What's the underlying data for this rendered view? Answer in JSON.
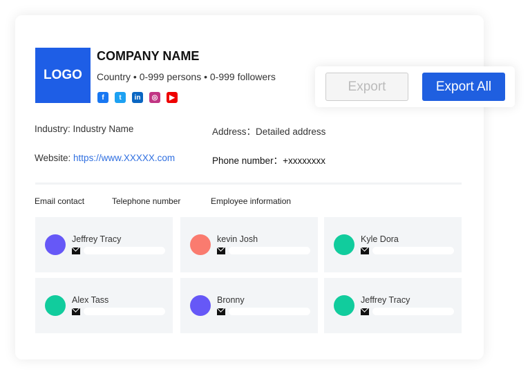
{
  "company": {
    "logo": "LOGO",
    "name": "COMPANY NAME",
    "meta": "Country • 0-999 persons • 0-999 followers",
    "social": [
      {
        "icon": "facebook-icon",
        "glyph": "f",
        "color": "#1877f2"
      },
      {
        "icon": "twitter-icon",
        "glyph": "t",
        "color": "#1da1f2"
      },
      {
        "icon": "linkedin-icon",
        "glyph": "in",
        "color": "#0a66c2"
      },
      {
        "icon": "instagram-icon",
        "glyph": "◎",
        "color": "#c13584"
      },
      {
        "icon": "youtube-icon",
        "glyph": "▶",
        "color": "#e00"
      }
    ]
  },
  "details": {
    "industry_label": "Industry:",
    "industry": "Industry Name",
    "address_label": "Address：",
    "address": "Detailed address",
    "website_label": "Website:",
    "website": "https://www.XXXXX.com",
    "phone_label": "Phone number：",
    "phone": "+xxxxxxxx"
  },
  "tabs": [
    "Email contact",
    "Telephone number",
    "Employee information"
  ],
  "contacts": [
    {
      "name": "Jeffrey Tracy",
      "color": "#6658f7"
    },
    {
      "name": "kevin Josh",
      "color": "#fa7b6f"
    },
    {
      "name": "Kyle Dora",
      "color": "#11cc9d"
    },
    {
      "name": "Alex Tass",
      "color": "#11cc9d"
    },
    {
      "name": "Bronny",
      "color": "#6658f7"
    },
    {
      "name": "Jeffrey Tracy",
      "color": "#11cc9d"
    }
  ],
  "actions": {
    "export": "Export",
    "export_all": "Export All"
  }
}
